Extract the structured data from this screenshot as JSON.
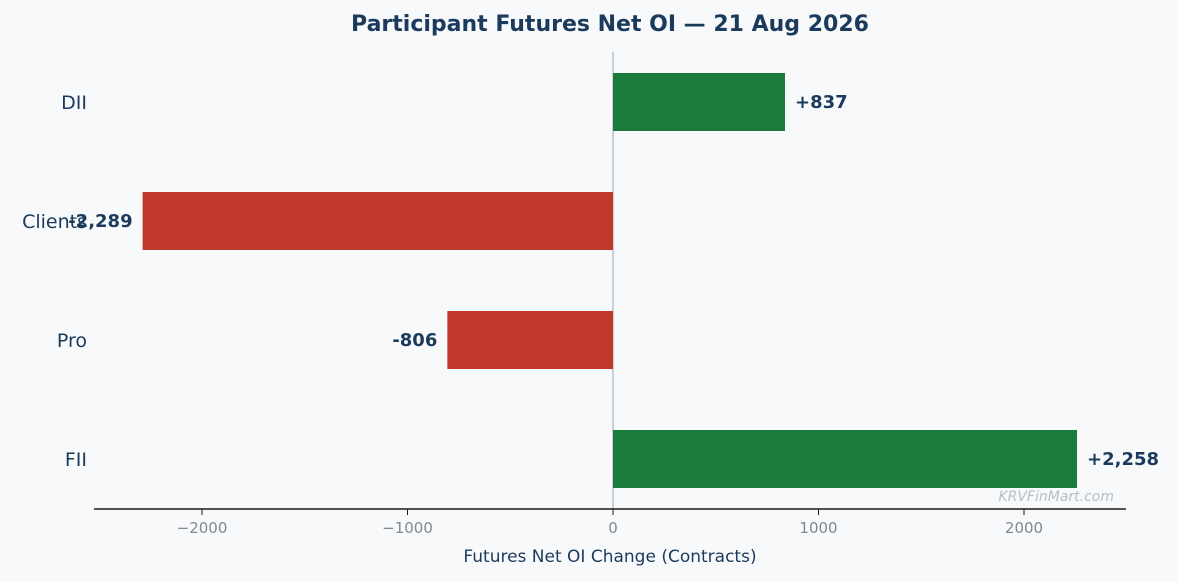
{
  "chart_data": {
    "type": "bar",
    "orientation": "horizontal",
    "title": "Participant Futures Net OI — 21 Aug 2026",
    "xlabel": "Futures Net OI Change (Contracts)",
    "ylabel": "",
    "categories": [
      "DII",
      "Clients",
      "Pro",
      "FII"
    ],
    "values": [
      837,
      -2289,
      -806,
      2258
    ],
    "value_labels": [
      "+837",
      "-2,289",
      "-806",
      "+2,258"
    ],
    "xlim": [
      -2530,
      2500
    ],
    "xticks": [
      -2000,
      -1000,
      0,
      1000,
      2000
    ],
    "xtick_labels": [
      "−2000",
      "−1000",
      "0",
      "1000",
      "2000"
    ],
    "grid": false,
    "colors": {
      "positive": "#1b7b3c",
      "negative": "#c0392b",
      "text": "#1b3a5c",
      "zero_line": "#bcc3c9"
    },
    "watermark": "KRVFinMart.com"
  }
}
